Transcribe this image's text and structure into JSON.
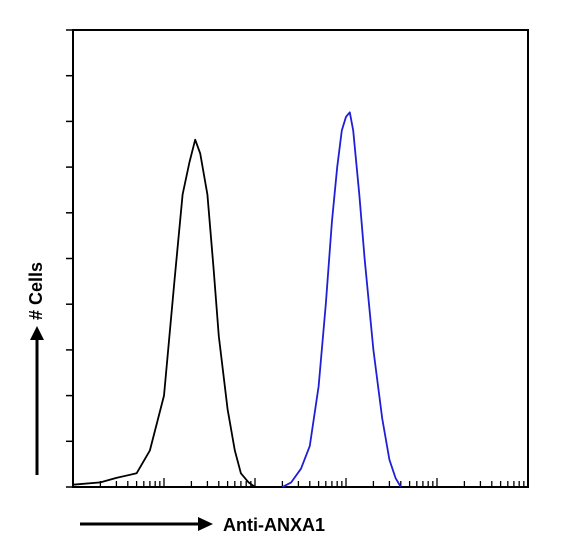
{
  "chart_data": {
    "type": "line",
    "title": "",
    "xlabel": "Anti-ANXA1",
    "ylabel": "# Cells",
    "x_scale": "log",
    "xlim": [
      1,
      100000
    ],
    "ylim": [
      0,
      100
    ],
    "grid": false,
    "legend": "none",
    "series": [
      {
        "color": "#000000",
        "x": [
          1,
          2,
          3,
          5,
          7,
          10,
          13,
          16,
          19,
          22,
          25,
          30,
          35,
          40,
          50,
          60,
          70,
          85,
          100
        ],
        "y": [
          0.5,
          1,
          2,
          3,
          8,
          20,
          45,
          64,
          71,
          76,
          73,
          64,
          48,
          33,
          17,
          8,
          3,
          1,
          0
        ]
      },
      {
        "color": "#1f1fd6",
        "x": [
          200,
          250,
          320,
          400,
          500,
          600,
          700,
          800,
          900,
          1000,
          1100,
          1200,
          1400,
          1600,
          2000,
          2500,
          3000,
          3500,
          4000
        ],
        "y": [
          0,
          1,
          4,
          9,
          22,
          40,
          58,
          70,
          78,
          81,
          82,
          78,
          64,
          50,
          30,
          15,
          6,
          2,
          0
        ]
      }
    ]
  }
}
